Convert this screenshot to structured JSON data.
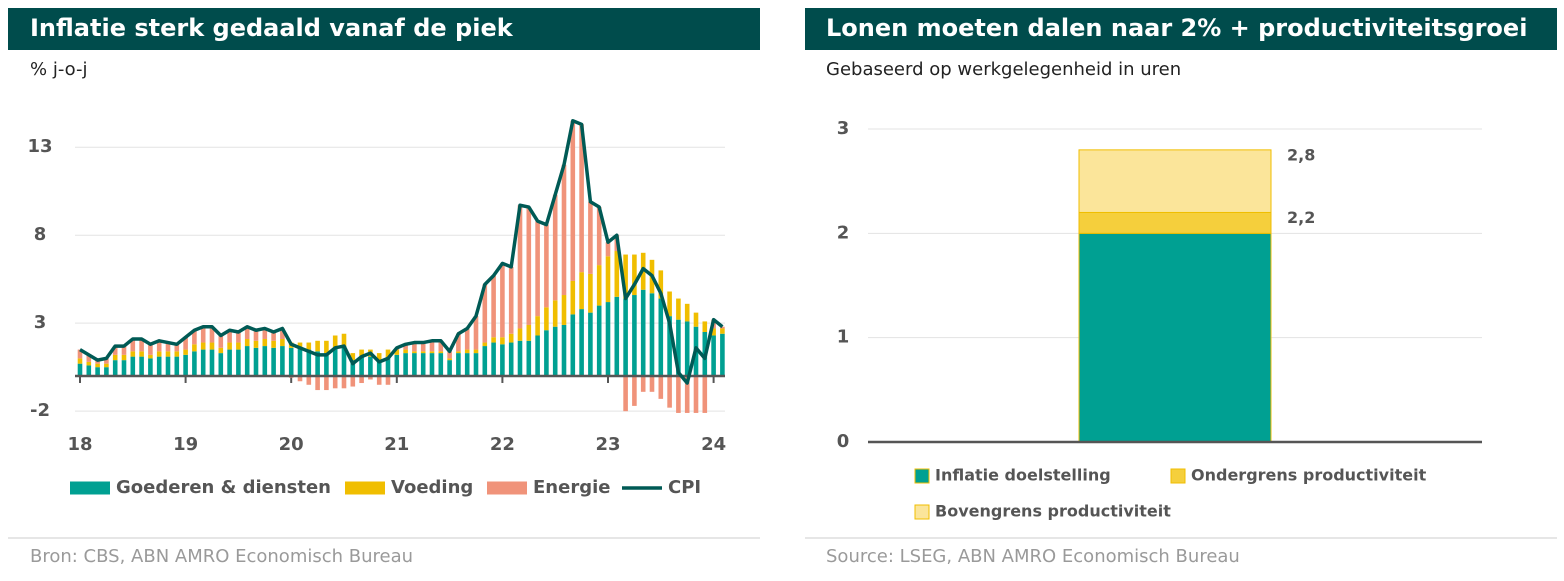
{
  "chart_data": [
    {
      "type": "bar",
      "stacked": true,
      "title": "Inflatie sterk gedaald vanaf de piek",
      "subtitle": "% j-o-j",
      "source": "Bron: CBS, ABN AMRO Economisch Bureau",
      "categories": [
        "18",
        null,
        null,
        null,
        null,
        null,
        null,
        null,
        null,
        null,
        null,
        null,
        "19",
        null,
        null,
        null,
        null,
        null,
        null,
        null,
        null,
        null,
        null,
        null,
        "20",
        null,
        null,
        null,
        null,
        null,
        null,
        null,
        null,
        null,
        null,
        null,
        "21",
        null,
        null,
        null,
        null,
        null,
        null,
        null,
        null,
        null,
        null,
        null,
        "22",
        null,
        null,
        null,
        null,
        null,
        null,
        null,
        null,
        null,
        null,
        null,
        "23",
        null,
        null,
        null,
        null,
        null,
        null,
        null,
        null,
        null,
        null,
        null,
        "24",
        null
      ],
      "series": [
        {
          "name": "Goederen & diensten",
          "color": "#00a092",
          "values": [
            0.7,
            0.6,
            0.5,
            0.5,
            0.9,
            0.9,
            1.1,
            1.1,
            1.0,
            1.1,
            1.1,
            1.1,
            1.2,
            1.4,
            1.5,
            1.5,
            1.3,
            1.5,
            1.5,
            1.7,
            1.6,
            1.7,
            1.6,
            1.7,
            1.6,
            1.6,
            1.5,
            1.4,
            1.3,
            1.6,
            1.7,
            0.9,
            1.1,
            1.1,
            0.9,
            1.0,
            1.2,
            1.3,
            1.3,
            1.3,
            1.3,
            1.3,
            0.9,
            1.3,
            1.3,
            1.3,
            1.7,
            1.9,
            1.8,
            1.9,
            2.0,
            2.0,
            2.3,
            2.6,
            2.8,
            2.9,
            3.5,
            3.8,
            3.6,
            4.0,
            4.2,
            4.5,
            4.4,
            4.6,
            4.9,
            4.7,
            4.4,
            3.4,
            3.2,
            3.1,
            2.8,
            2.5,
            2.3,
            2.4
          ]
        },
        {
          "name": "Voeding",
          "color": "#f0be00",
          "values": [
            0.3,
            0.2,
            0.2,
            0.2,
            0.3,
            0.3,
            0.3,
            0.3,
            0.2,
            0.3,
            0.3,
            0.3,
            0.3,
            0.4,
            0.4,
            0.4,
            0.3,
            0.4,
            0.4,
            0.4,
            0.4,
            0.4,
            0.4,
            0.4,
            0.3,
            0.3,
            0.4,
            0.6,
            0.7,
            0.7,
            0.7,
            0.4,
            0.4,
            0.4,
            0.4,
            0.5,
            0.3,
            0.2,
            0.1,
            0.1,
            0.1,
            0.1,
            0.1,
            0.1,
            0.2,
            0.2,
            0.2,
            0.3,
            0.4,
            0.5,
            0.7,
            0.9,
            1.1,
            1.3,
            1.5,
            1.7,
            1.9,
            2.1,
            2.2,
            2.3,
            2.6,
            2.6,
            2.5,
            2.3,
            2.1,
            1.9,
            1.6,
            1.4,
            1.2,
            1.0,
            0.8,
            0.6,
            0.4,
            0.3
          ]
        },
        {
          "name": "Energie",
          "color": "#f0937a",
          "values": [
            0.5,
            0.4,
            0.2,
            0.3,
            0.5,
            0.5,
            0.7,
            0.7,
            0.6,
            0.6,
            0.5,
            0.4,
            0.7,
            0.8,
            0.9,
            0.9,
            0.7,
            0.7,
            0.6,
            0.7,
            0.6,
            0.6,
            0.5,
            0.6,
            -0.1,
            -0.3,
            -0.5,
            -0.8,
            -0.8,
            -0.7,
            -0.7,
            -0.6,
            -0.4,
            -0.2,
            -0.5,
            -0.5,
            0.1,
            0.3,
            0.5,
            0.5,
            0.6,
            0.6,
            0.4,
            1.0,
            1.2,
            1.9,
            3.3,
            3.5,
            4.2,
            3.8,
            7.0,
            6.7,
            5.4,
            4.7,
            6.0,
            7.4,
            9.1,
            8.4,
            4.1,
            3.3,
            0.8,
            0.9,
            -2.0,
            -1.7,
            -0.9,
            -0.9,
            -1.3,
            -1.8,
            -2.1,
            -2.1,
            -2.1,
            -2.1,
            0.5,
            0.1
          ]
        },
        {
          "name": "CPI",
          "type": "line",
          "color": "#005a55",
          "values": [
            1.5,
            1.2,
            0.9,
            1.0,
            1.7,
            1.7,
            2.1,
            2.1,
            1.8,
            2.0,
            1.9,
            1.8,
            2.2,
            2.6,
            2.8,
            2.8,
            2.3,
            2.6,
            2.5,
            2.8,
            2.6,
            2.7,
            2.5,
            2.7,
            1.8,
            1.6,
            1.4,
            1.2,
            1.2,
            1.6,
            1.7,
            0.7,
            1.1,
            1.3,
            0.8,
            1.0,
            1.6,
            1.8,
            1.9,
            1.9,
            2.0,
            2.0,
            1.4,
            2.4,
            2.7,
            3.4,
            5.2,
            5.7,
            6.4,
            6.2,
            9.7,
            9.6,
            8.8,
            8.6,
            10.3,
            12.0,
            14.5,
            14.3,
            9.9,
            9.6,
            7.6,
            8.0,
            4.4,
            5.2,
            6.1,
            5.7,
            4.7,
            3.0,
            0.2,
            -0.4,
            1.6,
            1.0,
            3.2,
            2.8
          ]
        }
      ],
      "ylim": [
        -2.2,
        14.5
      ],
      "yticks": [
        -2,
        3,
        8,
        13
      ],
      "grid": true
    },
    {
      "type": "bar",
      "stacked": true,
      "title": "Lonen moeten dalen naar 2% + productiviteitsgroei",
      "subtitle": "Gebaseerd op werkgelegenheid in uren",
      "source": "Source: LSEG, ABN AMRO Economisch Bureau",
      "categories": [
        null
      ],
      "series": [
        {
          "name": "Inflatie doelstelling",
          "color": "#00a092",
          "values": [
            2
          ]
        },
        {
          "name": "Ondergrens productiviteit",
          "color": "#f5cf3c",
          "values": [
            0.2
          ]
        },
        {
          "name": "Bovengrens productiviteit",
          "color": "#fbe59a",
          "values": [
            0.6
          ]
        }
      ],
      "annotations": [
        {
          "text": "2,8",
          "y": 2.8
        },
        {
          "text": "2,2",
          "y": 2.2
        }
      ],
      "ylim": [
        0,
        3
      ],
      "yticks": [
        0,
        1,
        2,
        3
      ],
      "grid": true
    }
  ]
}
